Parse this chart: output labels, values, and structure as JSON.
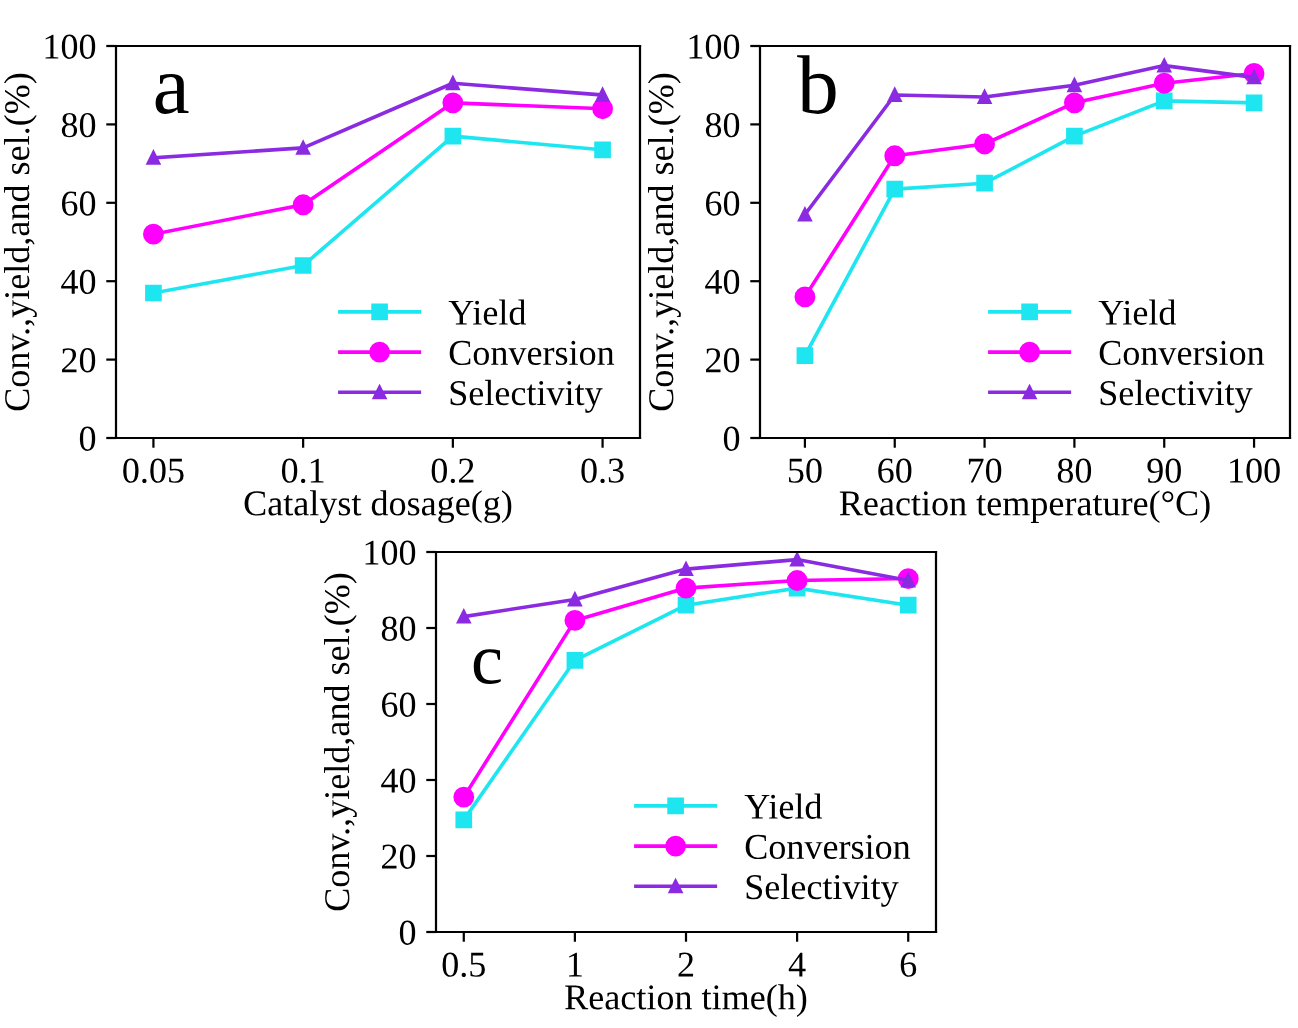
{
  "chart_data": [
    {
      "type": "line",
      "annotations": [
        "a"
      ],
      "xlabel": "Catalyst dosage(g)",
      "ylabel": "Conv.,yield,and sel.(%)",
      "categories": [
        "0.05",
        "0.1",
        "0.2",
        "0.3"
      ],
      "ylim": [
        0,
        100
      ],
      "yticks": [
        0,
        20,
        40,
        60,
        80,
        100
      ],
      "legend": "bottom right",
      "grid": false,
      "series": [
        {
          "name": "Yield",
          "color": "#1ee6f0",
          "marker": "square",
          "values": [
            37,
            44,
            77,
            73.5
          ]
        },
        {
          "name": "Conversion",
          "color": "#ff00ff",
          "marker": "circle",
          "values": [
            52,
            59.5,
            85.5,
            84
          ]
        },
        {
          "name": "Selectivity",
          "color": "#8a2be2",
          "marker": "triangle",
          "values": [
            71.5,
            74,
            90.5,
            87.5
          ]
        }
      ]
    },
    {
      "type": "line",
      "annotations": [
        "b"
      ],
      "xlabel": "Reaction temperature(°C)",
      "ylabel": "Conv.,yield,and sel.(%)",
      "x": [
        50,
        60,
        70,
        80,
        90,
        100
      ],
      "xlim": [
        45,
        104
      ],
      "xticks": [
        50,
        60,
        70,
        80,
        90,
        100
      ],
      "ylim": [
        0,
        100
      ],
      "yticks": [
        0,
        20,
        40,
        60,
        80,
        100
      ],
      "legend": "bottom right",
      "grid": false,
      "series": [
        {
          "name": "Yield",
          "color": "#1ee6f0",
          "marker": "square",
          "values": [
            21,
            63.5,
            65,
            77,
            86,
            85.5
          ]
        },
        {
          "name": "Conversion",
          "color": "#ff00ff",
          "marker": "circle",
          "values": [
            36,
            72,
            75,
            85.5,
            90.5,
            93
          ]
        },
        {
          "name": "Selectivity",
          "color": "#8a2be2",
          "marker": "triangle",
          "values": [
            57,
            87.5,
            87,
            90,
            95,
            92
          ]
        }
      ]
    },
    {
      "type": "line",
      "annotations": [
        "c"
      ],
      "xlabel": "Reaction time(h)",
      "ylabel": "Conv.,yield,and sel.(%)",
      "categories": [
        "0.5",
        "1",
        "2",
        "4",
        "6"
      ],
      "ylim": [
        0,
        100
      ],
      "yticks": [
        0,
        20,
        40,
        60,
        80,
        100
      ],
      "legend": "bottom right",
      "grid": false,
      "series": [
        {
          "name": "Yield",
          "color": "#1ee6f0",
          "marker": "square",
          "values": [
            29.5,
            71.5,
            86,
            90.5,
            86
          ]
        },
        {
          "name": "Conversion",
          "color": "#ff00ff",
          "marker": "circle",
          "values": [
            35.5,
            82,
            90.5,
            92.5,
            93
          ]
        },
        {
          "name": "Selectivity",
          "color": "#8a2be2",
          "marker": "triangle",
          "values": [
            83,
            87.5,
            95.5,
            98,
            92.5
          ]
        }
      ]
    }
  ]
}
